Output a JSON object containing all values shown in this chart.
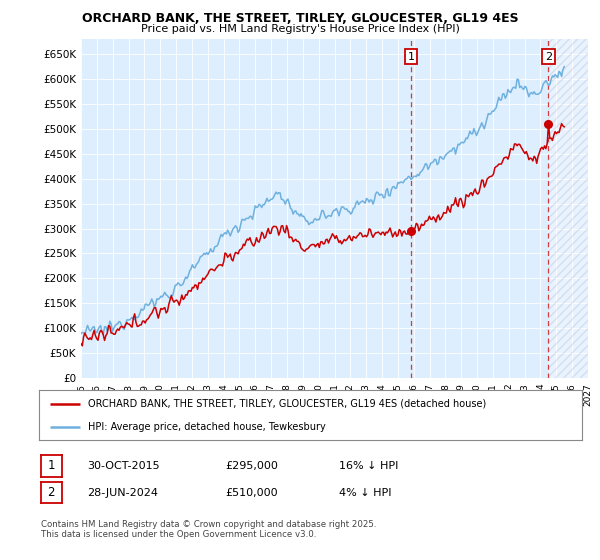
{
  "title": "ORCHARD BANK, THE STREET, TIRLEY, GLOUCESTER, GL19 4ES",
  "subtitle": "Price paid vs. HM Land Registry's House Price Index (HPI)",
  "ylabel_ticks": [
    "£0",
    "£50K",
    "£100K",
    "£150K",
    "£200K",
    "£250K",
    "£300K",
    "£350K",
    "£400K",
    "£450K",
    "£500K",
    "£550K",
    "£600K",
    "£650K"
  ],
  "ytick_values": [
    0,
    50000,
    100000,
    150000,
    200000,
    250000,
    300000,
    350000,
    400000,
    450000,
    500000,
    550000,
    600000,
    650000
  ],
  "x_start_year": 1995,
  "x_end_year": 2027,
  "hpi_color": "#6eb0de",
  "price_color": "#cc0000",
  "sale1_year": 2015.83,
  "sale1_price": 295000,
  "sale2_year": 2024.49,
  "sale2_price": 510000,
  "vline1_year": 2015.83,
  "vline2_year": 2024.49,
  "legend_line1": "ORCHARD BANK, THE STREET, TIRLEY, GLOUCESTER, GL19 4ES (detached house)",
  "legend_line2": "HPI: Average price, detached house, Tewkesbury",
  "table_row1": [
    "1",
    "30-OCT-2015",
    "£295,000",
    "16% ↓ HPI"
  ],
  "table_row2": [
    "2",
    "28-JUN-2024",
    "£510,000",
    "4% ↓ HPI"
  ],
  "footnote": "Contains HM Land Registry data © Crown copyright and database right 2025.\nThis data is licensed under the Open Government Licence v3.0.",
  "bg_color": "#ffffff",
  "plot_bg_color": "#ddeeff",
  "hatch_color": "#aaaacc"
}
